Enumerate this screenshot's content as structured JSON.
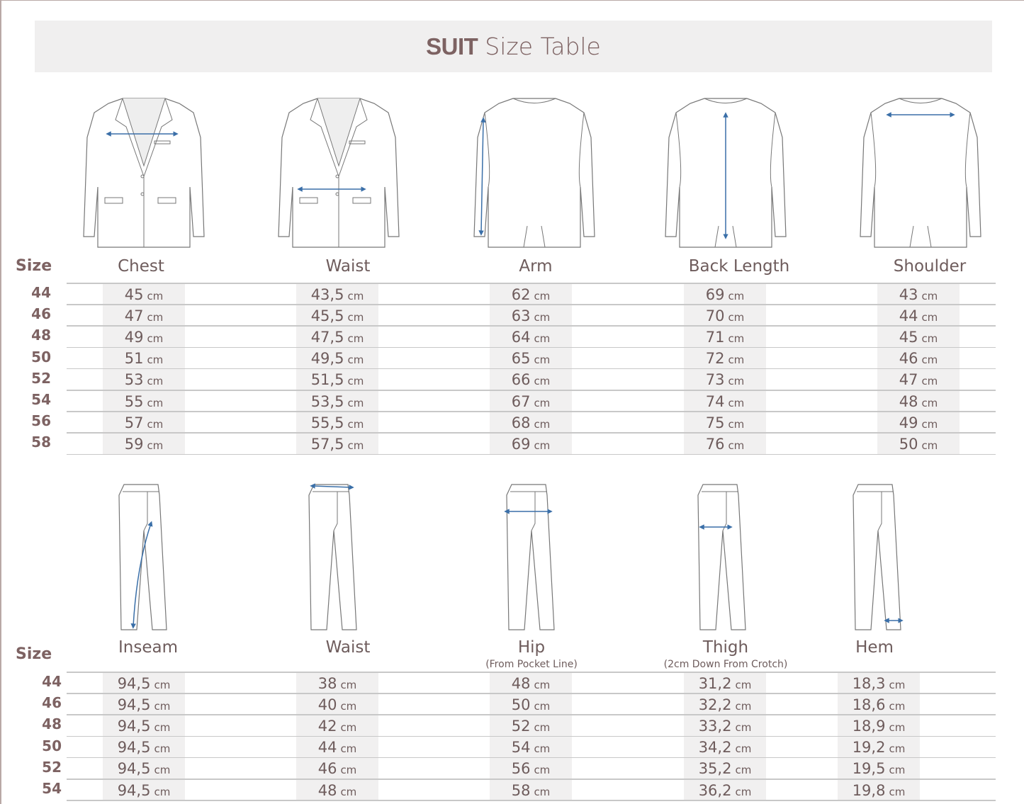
{
  "title": {
    "bold": "SUIT",
    "rest": "Size Table"
  },
  "colors": {
    "title": "#7d6262",
    "text": "#6e5c5c",
    "arrow": "#3a6fa8",
    "cell": "#f1f0f0",
    "header_bg": "#f0efef"
  },
  "unit": "cm",
  "jacket": {
    "size_label": "Size",
    "columns": [
      {
        "label": "Chest",
        "icon": "jacket-front-chest-icon"
      },
      {
        "label": "Waist",
        "icon": "jacket-front-waist-icon"
      },
      {
        "label": "Arm",
        "icon": "jacket-back-arm-icon"
      },
      {
        "label": "Back Length",
        "icon": "jacket-back-length-icon"
      },
      {
        "label": "Shoulder",
        "icon": "jacket-back-shoulder-icon"
      }
    ],
    "rows": [
      {
        "size": "44",
        "values": [
          "45",
          "43,5",
          "62",
          "69",
          "43"
        ]
      },
      {
        "size": "46",
        "values": [
          "47",
          "45,5",
          "63",
          "70",
          "44"
        ]
      },
      {
        "size": "48",
        "values": [
          "49",
          "47,5",
          "64",
          "71",
          "45"
        ]
      },
      {
        "size": "50",
        "values": [
          "51",
          "49,5",
          "65",
          "72",
          "46"
        ]
      },
      {
        "size": "52",
        "values": [
          "53",
          "51,5",
          "66",
          "73",
          "47"
        ]
      },
      {
        "size": "54",
        "values": [
          "55",
          "53,5",
          "67",
          "74",
          "48"
        ]
      },
      {
        "size": "56",
        "values": [
          "57",
          "55,5",
          "68",
          "75",
          "49"
        ]
      },
      {
        "size": "58",
        "values": [
          "59",
          "57,5",
          "69",
          "76",
          "50"
        ]
      }
    ]
  },
  "trousers": {
    "size_label": "Size",
    "columns": [
      {
        "label": "Inseam",
        "sub": "",
        "icon": "trousers-inseam-icon"
      },
      {
        "label": "Waist",
        "sub": "",
        "icon": "trousers-waist-icon"
      },
      {
        "label": "Hip",
        "sub": "(From Pocket Line)",
        "icon": "trousers-hip-icon"
      },
      {
        "label": "Thigh",
        "sub": "(2cm Down From Crotch)",
        "icon": "trousers-thigh-icon"
      },
      {
        "label": "Hem",
        "sub": "",
        "icon": "trousers-hem-icon"
      }
    ],
    "rows": [
      {
        "size": "44",
        "values": [
          "94,5",
          "38",
          "48",
          "31,2",
          "18,3"
        ]
      },
      {
        "size": "46",
        "values": [
          "94,5",
          "40",
          "50",
          "32,2",
          "18,6"
        ]
      },
      {
        "size": "48",
        "values": [
          "94,5",
          "42",
          "52",
          "33,2",
          "18,9"
        ]
      },
      {
        "size": "50",
        "values": [
          "94,5",
          "44",
          "54",
          "34,2",
          "19,2"
        ]
      },
      {
        "size": "52",
        "values": [
          "94,5",
          "46",
          "56",
          "35,2",
          "19,5"
        ]
      },
      {
        "size": "54",
        "values": [
          "94,5",
          "48",
          "58",
          "36,2",
          "19,8"
        ]
      }
    ]
  }
}
